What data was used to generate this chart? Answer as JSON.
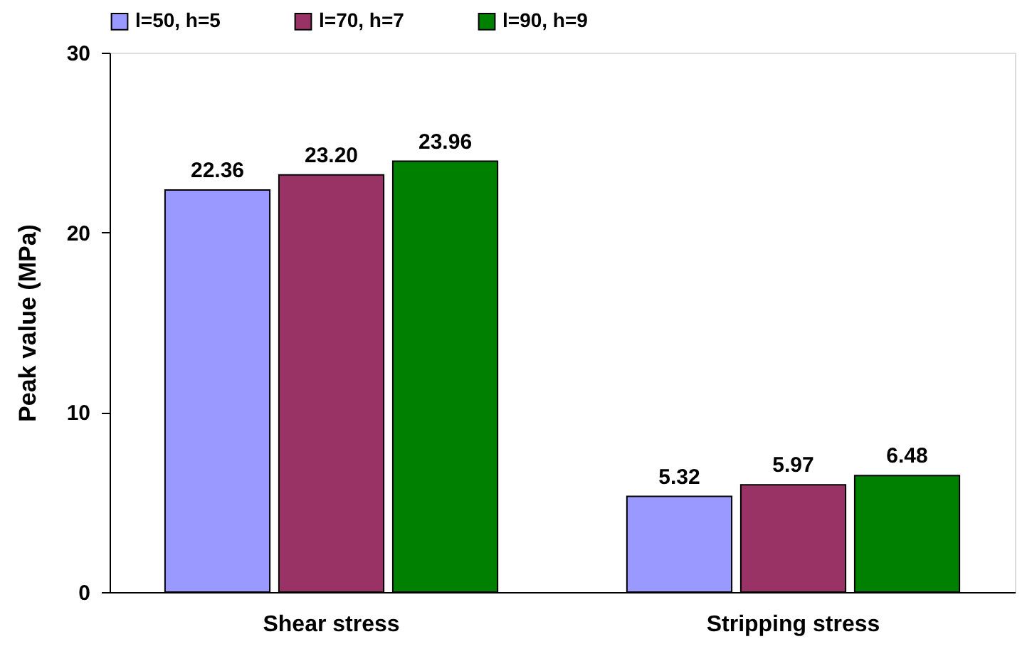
{
  "chart_data": {
    "type": "bar",
    "ylabel": "Peak value (MPa)",
    "categories": [
      "Shear stress",
      "Stripping stress"
    ],
    "series": [
      {
        "name": "l=50, h=5",
        "color": "#9999ff",
        "values": [
          22.36,
          5.32
        ],
        "value_labels": [
          "22.36",
          "5.32"
        ]
      },
      {
        "name": "l=70, h=7",
        "color": "#993366",
        "values": [
          23.2,
          5.97
        ],
        "value_labels": [
          "23.20",
          "5.97"
        ]
      },
      {
        "name": "l=90, h=9",
        "color": "#008000",
        "values": [
          23.96,
          6.48
        ],
        "value_labels": [
          "23.96",
          "6.48"
        ]
      }
    ],
    "ylim": [
      0,
      30
    ],
    "yticks": [
      0,
      10,
      20,
      30
    ],
    "grid": false,
    "legend": "top"
  }
}
